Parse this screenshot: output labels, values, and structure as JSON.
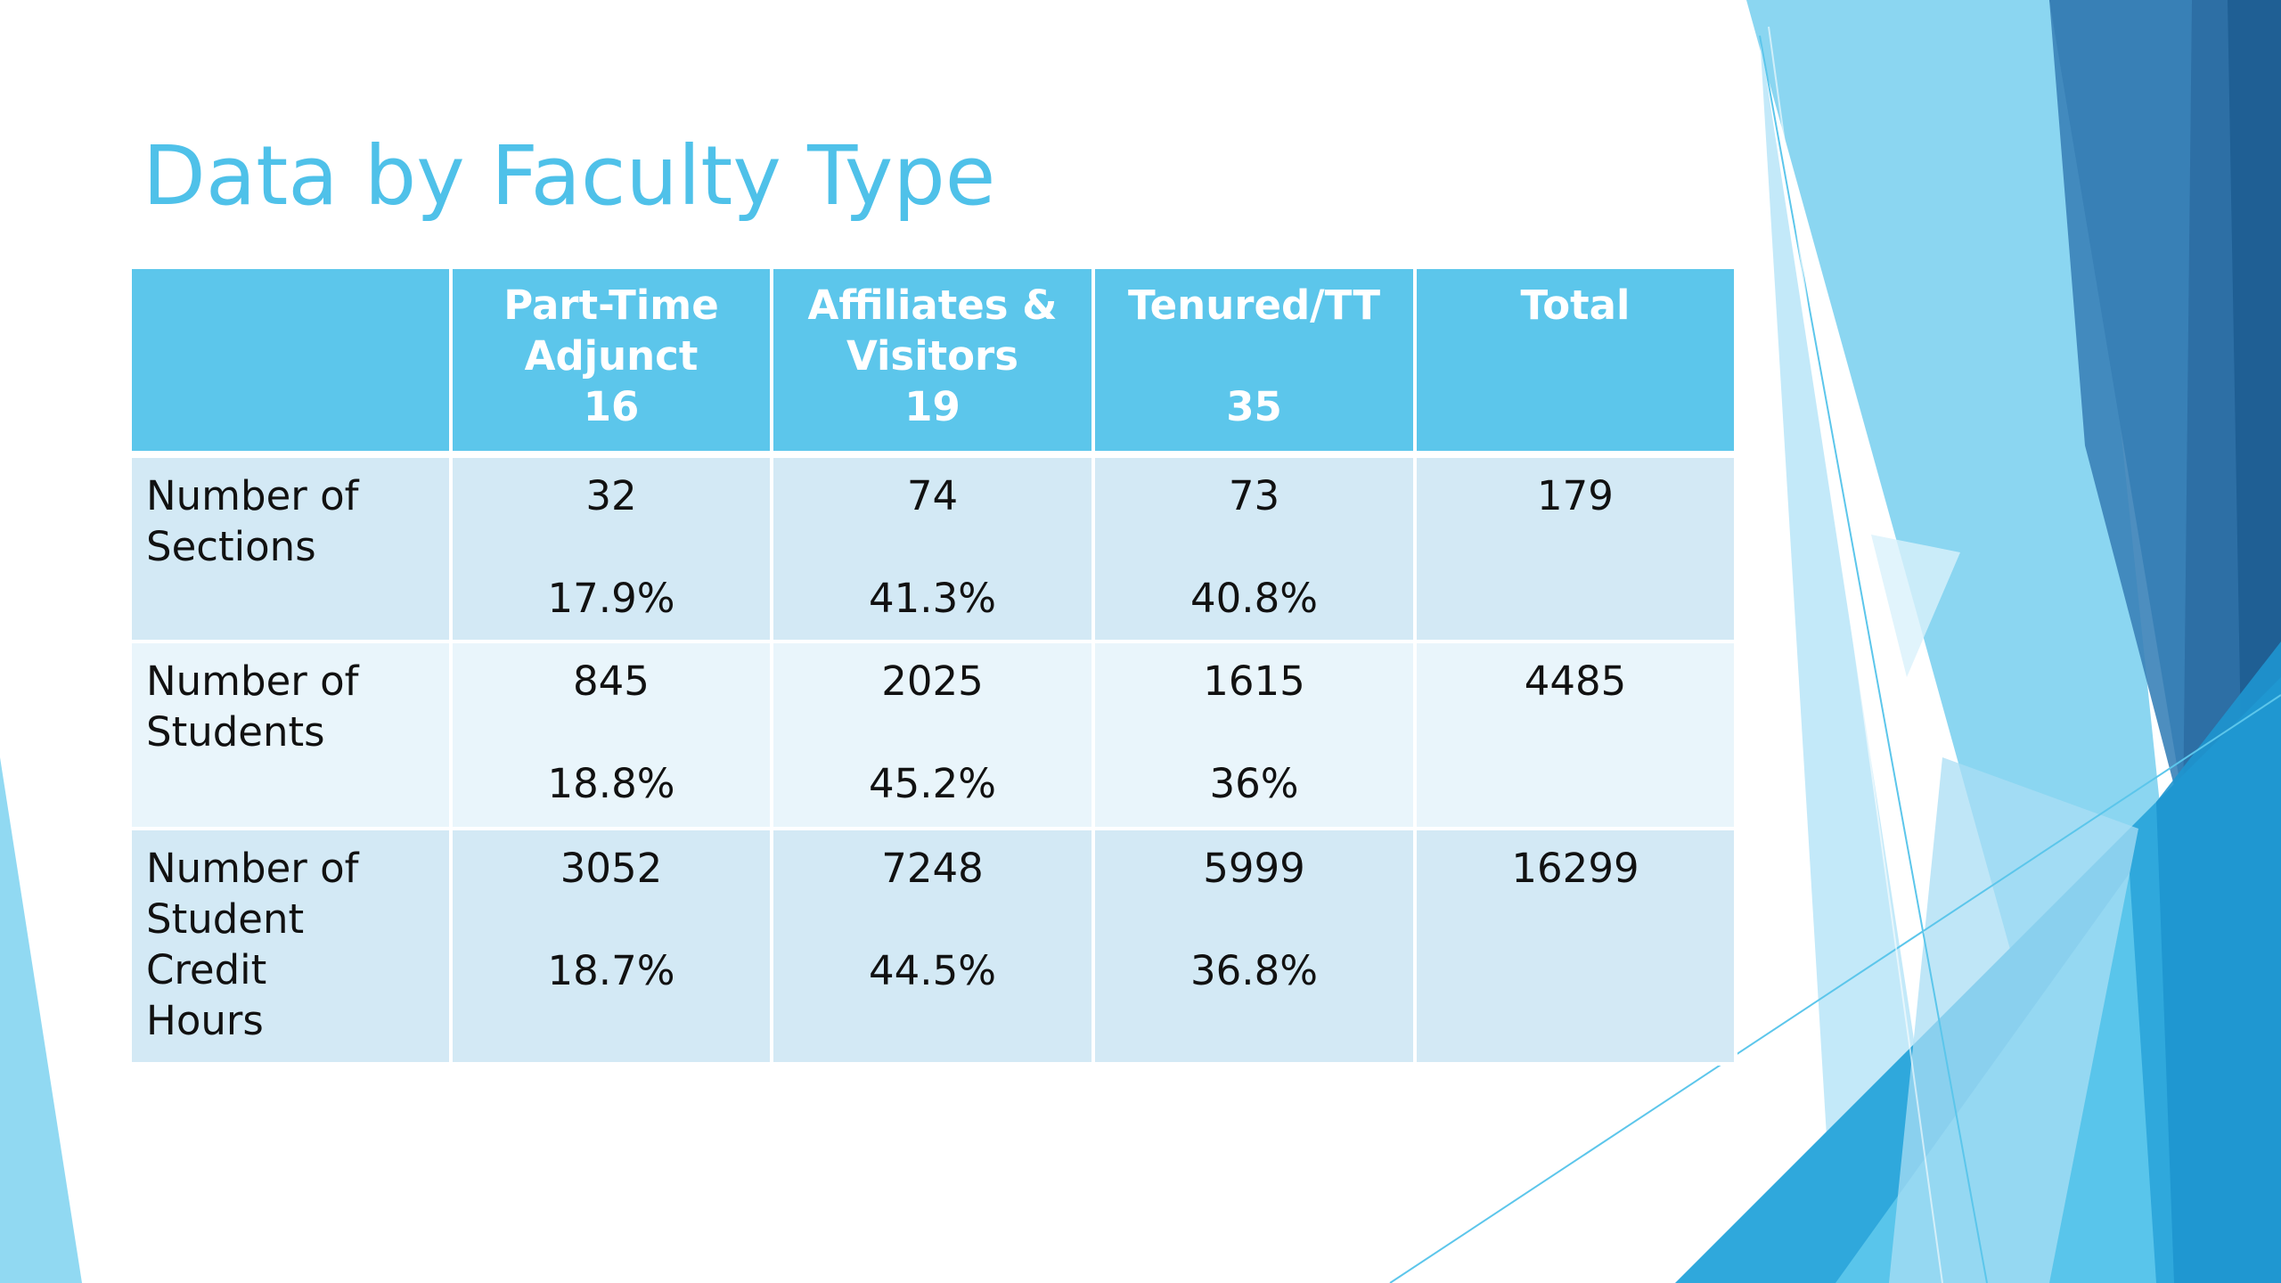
{
  "slide": {
    "title": "Data by Faculty Type"
  },
  "table": {
    "columns": [
      {
        "lines": [
          "",
          "",
          ""
        ]
      },
      {
        "lines": [
          "Part-Time",
          "Adjunct",
          "16"
        ]
      },
      {
        "lines": [
          "Affiliates &",
          "Visitors",
          "19"
        ]
      },
      {
        "lines": [
          "Tenured/TT",
          "",
          "35"
        ]
      },
      {
        "lines": [
          "Total",
          "",
          ""
        ]
      }
    ],
    "rows": [
      {
        "label_lines": [
          "Number of",
          "Sections"
        ],
        "cells": [
          {
            "value": "32",
            "percent": "17.9%"
          },
          {
            "value": "74",
            "percent": "41.3%"
          },
          {
            "value": "73",
            "percent": "40.8%"
          },
          {
            "value": "179",
            "percent": ""
          }
        ]
      },
      {
        "label_lines": [
          "Number of",
          "Students"
        ],
        "cells": [
          {
            "value": "845",
            "percent": "18.8%"
          },
          {
            "value": "2025",
            "percent": "45.2%"
          },
          {
            "value": "1615",
            "percent": "36%"
          },
          {
            "value": "4485",
            "percent": ""
          }
        ]
      },
      {
        "label_lines": [
          "Number of",
          "Student Credit",
          "Hours"
        ],
        "cells": [
          {
            "value": "3052",
            "percent": "18.7%"
          },
          {
            "value": "7248",
            "percent": "44.5%"
          },
          {
            "value": "5999",
            "percent": "36.8%"
          },
          {
            "value": "16299",
            "percent": ""
          }
        ]
      }
    ]
  },
  "theme": {
    "title_color": "#4fc1e9",
    "header_fill": "#5cc6eb",
    "band_dark": "#d3e9f5",
    "band_light": "#e9f5fb",
    "accent_dark_blue": "#2b6da3",
    "accent_mid_blue": "#2fa8dc",
    "accent_light_blue": "#7ed2f0"
  }
}
